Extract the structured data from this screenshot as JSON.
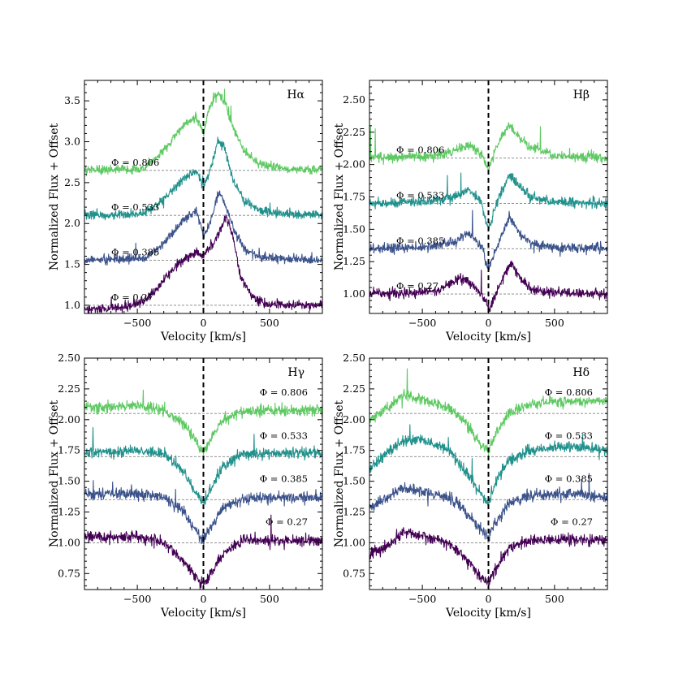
{
  "chart_data": [
    {
      "type": "line",
      "title": "Hα",
      "xlabel": "Velocity [km/s]",
      "ylabel": "Normalized Flux + Offset",
      "xlim": [
        -900,
        900
      ],
      "ylim": [
        0.9,
        3.75
      ],
      "xticks": [
        -500,
        0,
        500
      ],
      "xticklabels": [
        "−500",
        "0",
        "500"
      ],
      "yticks": [
        1.0,
        1.5,
        2.0,
        2.5,
        3.0,
        3.5
      ],
      "yticklabels": [
        "1.0",
        "1.5",
        "2.0",
        "2.5",
        "3.0",
        "3.5"
      ],
      "label_side": "left",
      "series": [
        {
          "name": "Φ = 0.806",
          "phase_label": "Φ = 0.806",
          "offset": 2.65,
          "color": "#5ec962",
          "profile": [
            [
              -900,
              0
            ],
            [
              -450,
              0.02
            ],
            [
              -300,
              0.25
            ],
            [
              -150,
              0.55
            ],
            [
              -60,
              0.65
            ],
            [
              0,
              0.45
            ],
            [
              40,
              0.75
            ],
            [
              110,
              0.95
            ],
            [
              160,
              0.85
            ],
            [
              220,
              0.55
            ],
            [
              300,
              0.25
            ],
            [
              420,
              0.08
            ],
            [
              600,
              0.02
            ],
            [
              900,
              0
            ]
          ]
        },
        {
          "name": "Φ = 0.533",
          "phase_label": "Φ = 0.533",
          "offset": 2.1,
          "color": "#21918c",
          "profile": [
            [
              -900,
              0
            ],
            [
              -450,
              0.02
            ],
            [
              -300,
              0.2
            ],
            [
              -150,
              0.45
            ],
            [
              -50,
              0.55
            ],
            [
              0,
              0.35
            ],
            [
              60,
              0.6
            ],
            [
              110,
              0.9
            ],
            [
              160,
              0.85
            ],
            [
              220,
              0.45
            ],
            [
              300,
              0.2
            ],
            [
              420,
              0.05
            ],
            [
              600,
              0.02
            ],
            [
              900,
              0
            ]
          ]
        },
        {
          "name": "Φ = 0.385",
          "phase_label": "Φ = 0.385",
          "offset": 1.55,
          "color": "#3b528b",
          "profile": [
            [
              -900,
              0
            ],
            [
              -450,
              0.02
            ],
            [
              -300,
              0.2
            ],
            [
              -150,
              0.5
            ],
            [
              -50,
              0.6
            ],
            [
              0,
              0.3
            ],
            [
              60,
              0.5
            ],
            [
              120,
              0.85
            ],
            [
              170,
              0.65
            ],
            [
              240,
              0.35
            ],
            [
              320,
              0.12
            ],
            [
              450,
              0.03
            ],
            [
              900,
              0
            ]
          ]
        },
        {
          "name": "Φ = 0.27",
          "phase_label": "Φ = 0.27",
          "offset": 1.0,
          "color": "#440154",
          "profile": [
            [
              -900,
              -0.05
            ],
            [
              -600,
              -0.03
            ],
            [
              -450,
              0.05
            ],
            [
              -350,
              0.2
            ],
            [
              -200,
              0.5
            ],
            [
              -50,
              0.65
            ],
            [
              0,
              0.62
            ],
            [
              80,
              0.75
            ],
            [
              170,
              1.08
            ],
            [
              230,
              0.8
            ],
            [
              280,
              0.35
            ],
            [
              380,
              0.08
            ],
            [
              500,
              0.01
            ],
            [
              900,
              0
            ]
          ]
        }
      ],
      "reference_lines": [
        2.65,
        2.1,
        1.55,
        1.0
      ],
      "vline": 0
    },
    {
      "type": "line",
      "title": "Hβ",
      "xlabel": "Velocity [km/s]",
      "ylabel": "Normalized Flux + Offset",
      "xlim": [
        -900,
        900
      ],
      "ylim": [
        0.85,
        2.65
      ],
      "xticks": [
        -500,
        0,
        500
      ],
      "xticklabels": [
        "−500",
        "0",
        "500"
      ],
      "yticks": [
        1.0,
        1.25,
        1.5,
        1.75,
        2.0,
        2.25,
        2.5
      ],
      "yticklabels": [
        "1.00",
        "1.25",
        "1.50",
        "1.75",
        "2.00",
        "2.25",
        "2.50"
      ],
      "label_side": "left",
      "series": [
        {
          "name": "Φ = 0.806",
          "phase_label": "Φ = 0.806",
          "offset": 2.05,
          "color": "#5ec962",
          "profile": [
            [
              -900,
              0
            ],
            [
              -400,
              0.02
            ],
            [
              -250,
              0.06
            ],
            [
              -130,
              0.1
            ],
            [
              -50,
              0.02
            ],
            [
              0,
              -0.1
            ],
            [
              60,
              0.1
            ],
            [
              150,
              0.25
            ],
            [
              220,
              0.18
            ],
            [
              320,
              0.08
            ],
            [
              500,
              0.02
            ],
            [
              900,
              0
            ]
          ]
        },
        {
          "name": "Φ = 0.533",
          "phase_label": "Φ = 0.533",
          "offset": 1.7,
          "color": "#21918c",
          "profile": [
            [
              -900,
              0
            ],
            [
              -400,
              0.02
            ],
            [
              -250,
              0.06
            ],
            [
              -150,
              0.1
            ],
            [
              -60,
              0.02
            ],
            [
              0,
              -0.2
            ],
            [
              80,
              0.05
            ],
            [
              160,
              0.22
            ],
            [
              220,
              0.15
            ],
            [
              320,
              0.05
            ],
            [
              500,
              0.01
            ],
            [
              900,
              0
            ]
          ]
        },
        {
          "name": "Φ = 0.385",
          "phase_label": "Φ = 0.385",
          "offset": 1.35,
          "color": "#3b528b",
          "profile": [
            [
              -900,
              0
            ],
            [
              -400,
              0.02
            ],
            [
              -250,
              0.06
            ],
            [
              -150,
              0.12
            ],
            [
              -60,
              0.03
            ],
            [
              0,
              -0.15
            ],
            [
              80,
              0.05
            ],
            [
              160,
              0.25
            ],
            [
              220,
              0.14
            ],
            [
              320,
              0.04
            ],
            [
              500,
              0.01
            ],
            [
              900,
              0
            ]
          ]
        },
        {
          "name": "Φ = 0.27",
          "phase_label": "Φ = 0.27",
          "offset": 1.0,
          "color": "#440154",
          "profile": [
            [
              -900,
              0
            ],
            [
              -400,
              0.02
            ],
            [
              -250,
              0.1
            ],
            [
              -180,
              0.12
            ],
            [
              -100,
              0.05
            ],
            [
              -30,
              -0.05
            ],
            [
              10,
              -0.12
            ],
            [
              80,
              0.05
            ],
            [
              170,
              0.25
            ],
            [
              240,
              0.12
            ],
            [
              340,
              0.03
            ],
            [
              500,
              0.01
            ],
            [
              900,
              0
            ]
          ]
        }
      ],
      "reference_lines": [
        2.05,
        1.7,
        1.35,
        1.0
      ],
      "vline": 0
    },
    {
      "type": "line",
      "title": "Hγ",
      "xlabel": "Velocity [km/s]",
      "ylabel": "Normalized Flux + Offset",
      "xlim": [
        -900,
        900
      ],
      "ylim": [
        0.62,
        2.5
      ],
      "xticks": [
        -500,
        0,
        500
      ],
      "xticklabels": [
        "−500",
        "0",
        "500"
      ],
      "yticks": [
        0.75,
        1.0,
        1.25,
        1.5,
        1.75,
        2.0,
        2.25,
        2.5
      ],
      "yticklabels": [
        "0.75",
        "1.00",
        "1.25",
        "1.50",
        "1.75",
        "2.00",
        "2.25",
        "2.50"
      ],
      "label_side": "right",
      "series": [
        {
          "name": "Φ = 0.806",
          "phase_label": "Φ = 0.806",
          "offset": 2.05,
          "color": "#5ec962",
          "profile": [
            [
              -900,
              0.05
            ],
            [
              -500,
              0.06
            ],
            [
              -300,
              0.02
            ],
            [
              -150,
              -0.08
            ],
            [
              -60,
              -0.22
            ],
            [
              0,
              -0.32
            ],
            [
              60,
              -0.2
            ],
            [
              150,
              -0.05
            ],
            [
              300,
              0.02
            ],
            [
              900,
              0.03
            ]
          ]
        },
        {
          "name": "Φ = 0.533",
          "phase_label": "Φ = 0.533",
          "offset": 1.7,
          "color": "#21918c",
          "profile": [
            [
              -900,
              0.03
            ],
            [
              -500,
              0.05
            ],
            [
              -300,
              0.02
            ],
            [
              -150,
              -0.12
            ],
            [
              -60,
              -0.3
            ],
            [
              0,
              -0.38
            ],
            [
              60,
              -0.25
            ],
            [
              150,
              -0.08
            ],
            [
              300,
              0.02
            ],
            [
              900,
              0.03
            ]
          ]
        },
        {
          "name": "Φ = 0.385",
          "phase_label": "Φ = 0.385",
          "offset": 1.35,
          "color": "#3b528b",
          "profile": [
            [
              -900,
              0.04
            ],
            [
              -500,
              0.05
            ],
            [
              -300,
              0.02
            ],
            [
              -150,
              -0.1
            ],
            [
              -60,
              -0.25
            ],
            [
              0,
              -0.32
            ],
            [
              60,
              -0.22
            ],
            [
              150,
              -0.06
            ],
            [
              300,
              0.01
            ],
            [
              900,
              0.02
            ]
          ]
        },
        {
          "name": "Φ = 0.27",
          "phase_label": "Φ = 0.27",
          "offset": 1.0,
          "color": "#440154",
          "profile": [
            [
              -900,
              0.05
            ],
            [
              -500,
              0.05
            ],
            [
              -300,
              0.0
            ],
            [
              -150,
              -0.15
            ],
            [
              -60,
              -0.28
            ],
            [
              0,
              -0.33
            ],
            [
              60,
              -0.25
            ],
            [
              150,
              -0.08
            ],
            [
              300,
              0.02
            ],
            [
              900,
              0.02
            ]
          ]
        }
      ],
      "reference_lines": [
        2.05,
        1.7,
        1.35,
        1.0
      ],
      "vline": 0
    },
    {
      "type": "line",
      "title": "Hδ",
      "xlabel": "Velocity [km/s]",
      "ylabel": "Normalized Flux + Offset",
      "xlim": [
        -900,
        900
      ],
      "ylim": [
        0.62,
        2.5
      ],
      "xticks": [
        -500,
        0,
        500
      ],
      "xticklabels": [
        "−500",
        "0",
        "500"
      ],
      "yticks": [
        0.75,
        1.0,
        1.25,
        1.5,
        1.75,
        2.0,
        2.25,
        2.5
      ],
      "yticklabels": [
        "0.75",
        "1.00",
        "1.25",
        "1.50",
        "1.75",
        "2.00",
        "2.25",
        "2.50"
      ],
      "label_side": "right",
      "series": [
        {
          "name": "Φ = 0.806",
          "phase_label": "Φ = 0.806",
          "offset": 2.05,
          "color": "#5ec962",
          "profile": [
            [
              -900,
              -0.05
            ],
            [
              -750,
              0.05
            ],
            [
              -650,
              0.15
            ],
            [
              -500,
              0.12
            ],
            [
              -300,
              0.05
            ],
            [
              -150,
              -0.1
            ],
            [
              -60,
              -0.25
            ],
            [
              0,
              -0.3
            ],
            [
              60,
              -0.15
            ],
            [
              150,
              0.0
            ],
            [
              300,
              0.08
            ],
            [
              600,
              0.1
            ],
            [
              900,
              0.1
            ]
          ]
        },
        {
          "name": "Φ = 0.533",
          "phase_label": "Φ = 0.533",
          "offset": 1.7,
          "color": "#21918c",
          "profile": [
            [
              -900,
              -0.1
            ],
            [
              -750,
              0.05
            ],
            [
              -650,
              0.12
            ],
            [
              -500,
              0.15
            ],
            [
              -300,
              0.05
            ],
            [
              -150,
              -0.15
            ],
            [
              -60,
              -0.3
            ],
            [
              0,
              -0.38
            ],
            [
              60,
              -0.2
            ],
            [
              150,
              -0.03
            ],
            [
              300,
              0.05
            ],
            [
              600,
              0.08
            ],
            [
              900,
              0.05
            ]
          ]
        },
        {
          "name": "Φ = 0.385",
          "phase_label": "Φ = 0.385",
          "offset": 1.35,
          "color": "#3b528b",
          "profile": [
            [
              -900,
              -0.07
            ],
            [
              -750,
              0.02
            ],
            [
              -650,
              0.1
            ],
            [
              -500,
              0.07
            ],
            [
              -300,
              0.02
            ],
            [
              -150,
              -0.12
            ],
            [
              -60,
              -0.25
            ],
            [
              0,
              -0.3
            ],
            [
              60,
              -0.18
            ],
            [
              150,
              -0.03
            ],
            [
              300,
              0.03
            ],
            [
              600,
              0.05
            ],
            [
              900,
              0.02
            ]
          ]
        },
        {
          "name": "Φ = 0.27",
          "phase_label": "Φ = 0.27",
          "offset": 1.0,
          "color": "#440154",
          "profile": [
            [
              -900,
              -0.1
            ],
            [
              -750,
              -0.02
            ],
            [
              -650,
              0.08
            ],
            [
              -500,
              0.05
            ],
            [
              -300,
              0.0
            ],
            [
              -150,
              -0.15
            ],
            [
              -60,
              -0.28
            ],
            [
              0,
              -0.32
            ],
            [
              60,
              -0.2
            ],
            [
              150,
              -0.05
            ],
            [
              300,
              0.02
            ],
            [
              600,
              0.03
            ],
            [
              900,
              0.02
            ]
          ]
        }
      ],
      "reference_lines": [
        2.05,
        1.7,
        1.35,
        1.0
      ],
      "vline": 0
    }
  ]
}
